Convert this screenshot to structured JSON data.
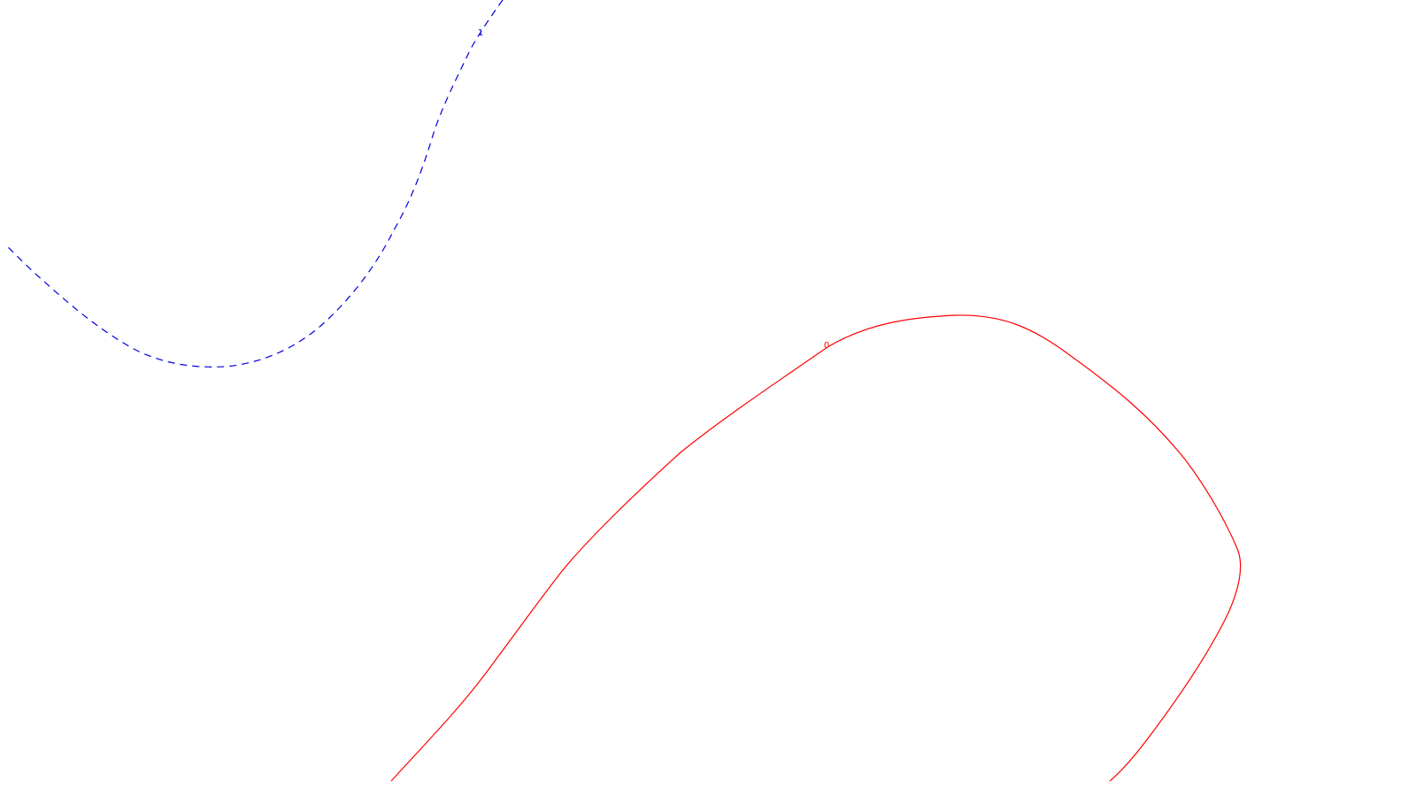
{
  "chart_data": {
    "type": "line",
    "title": "",
    "xlabel": "",
    "ylabel": "",
    "grid": false,
    "series": [
      {
        "label_text": "1",
        "color": "#0000dd",
        "dashed": true
      },
      {
        "label_text": "0",
        "color": "#ff0000",
        "dashed": false
      }
    ]
  }
}
